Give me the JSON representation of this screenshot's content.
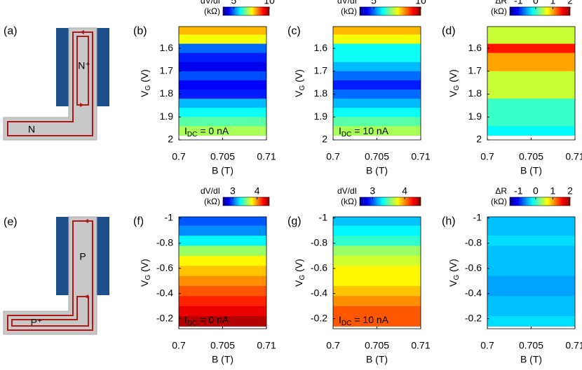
{
  "diagrams": [
    {
      "label": "(a)",
      "texts": [
        "N⁺",
        "N"
      ]
    },
    {
      "label": "(e)",
      "texts": [
        "P",
        "P⁺"
      ]
    }
  ],
  "chart_data": [
    {
      "type": "heatmap",
      "panel_label": "(b)",
      "colorbar": {
        "label": [
          "dV/dI",
          "(kΩ)"
        ],
        "clim": [
          3.5,
          10
        ],
        "ticks": [
          5,
          10
        ]
      },
      "x_label": "B (T)",
      "y_label": {
        "main": "V",
        "sub": "G",
        "rest": "(V)"
      },
      "annotation": {
        "main": "I",
        "sub": "DC",
        "rest": "= 0 nA"
      },
      "xlim": [
        0.7,
        0.71
      ],
      "xticks": [
        0.7,
        0.705,
        0.71
      ],
      "ylim": [
        1.505,
        2
      ],
      "yticks": [
        1.6,
        1.7,
        1.8,
        1.9,
        2
      ],
      "y": [
        1.52,
        1.56,
        1.6,
        1.64,
        1.68,
        1.72,
        1.76,
        1.8,
        1.84,
        1.88,
        1.92,
        1.96
      ],
      "values": [
        8,
        7.5,
        5,
        4.5,
        4.2,
        4.8,
        4.3,
        4.5,
        5.5,
        6,
        6.5,
        7
      ]
    },
    {
      "type": "heatmap",
      "panel_label": "(c)",
      "colorbar": {
        "label": [
          "dV/dI",
          "(kΩ)"
        ],
        "clim": [
          3.5,
          10
        ],
        "ticks": [
          5,
          10
        ]
      },
      "x_label": "B (T)",
      "y_label": {
        "main": "V",
        "sub": "G",
        "rest": "(V)"
      },
      "annotation": {
        "main": "I",
        "sub": "DC",
        "rest": "= 10 nA"
      },
      "xlim": [
        0.7,
        0.71
      ],
      "xticks": [
        0.7,
        0.705,
        0.71
      ],
      "ylim": [
        1.505,
        2
      ],
      "yticks": [
        1.6,
        1.7,
        1.8,
        1.9,
        2
      ],
      "y": [
        1.52,
        1.56,
        1.6,
        1.64,
        1.68,
        1.72,
        1.76,
        1.8,
        1.84,
        1.88,
        1.92,
        1.96
      ],
      "values": [
        8,
        7.5,
        6,
        6,
        5.5,
        5,
        4.5,
        5,
        5.5,
        6,
        6.5,
        7
      ]
    },
    {
      "type": "heatmap",
      "panel_label": "(d)",
      "colorbar": {
        "label": [
          "ΔR",
          "(kΩ)"
        ],
        "clim": [
          -1.5,
          2
        ],
        "ticks": [
          -1,
          0,
          1,
          2
        ]
      },
      "x_label": "B (T)",
      "y_label": {
        "main": "V",
        "sub": "G",
        "rest": "(V)"
      },
      "xlim": [
        0.7,
        0.71
      ],
      "xticks": [
        0.7,
        0.705,
        0.71
      ],
      "ylim": [
        1.505,
        2
      ],
      "yticks": [
        1.6,
        1.7,
        1.8,
        1.9,
        2
      ],
      "y": [
        1.52,
        1.56,
        1.6,
        1.64,
        1.68,
        1.72,
        1.76,
        1.8,
        1.84,
        1.88,
        1.92,
        1.96
      ],
      "values": [
        0.5,
        0.5,
        1.5,
        1,
        1,
        0.5,
        0.5,
        0.5,
        0,
        0,
        0,
        -0.2
      ]
    },
    {
      "type": "heatmap",
      "panel_label": "(f)",
      "colorbar": {
        "label": [
          "dV/dI",
          "(kΩ)"
        ],
        "clim": [
          2.6,
          4.5
        ],
        "ticks": [
          3,
          4
        ]
      },
      "x_label": "B (T)",
      "y_label": {
        "main": "V",
        "sub": "G",
        "rest": "(V)"
      },
      "annotation": {
        "main": "I",
        "sub": "DC",
        "rest": "= 0 nA"
      },
      "xlim": [
        0.7,
        0.71
      ],
      "xticks": [
        0.7,
        0.705,
        0.71
      ],
      "ylim": [
        -1.01,
        -0.12
      ],
      "yticks": [
        -1,
        -0.8,
        -0.6,
        -0.4,
        -0.2
      ],
      "y": [
        -0.98,
        -0.9,
        -0.82,
        -0.74,
        -0.66,
        -0.58,
        -0.5,
        -0.42,
        -0.34,
        -0.26,
        -0.18
      ],
      "values": [
        3,
        3.1,
        3.3,
        3.6,
        3.8,
        3.9,
        4,
        4.1,
        4.2,
        4.3,
        4.4
      ]
    },
    {
      "type": "heatmap",
      "panel_label": "(g)",
      "colorbar": {
        "label": [
          "dV/dI",
          "(kΩ)"
        ],
        "clim": [
          2.6,
          4.5
        ],
        "ticks": [
          3,
          4
        ]
      },
      "x_label": "B (T)",
      "y_label": {
        "main": "V",
        "sub": "G",
        "rest": "(V)"
      },
      "annotation": {
        "main": "I",
        "sub": "DC",
        "rest": "= 10 nA"
      },
      "xlim": [
        0.7,
        0.71
      ],
      "xticks": [
        0.7,
        0.705,
        0.71
      ],
      "ylim": [
        -1.01,
        -0.12
      ],
      "yticks": [
        -1,
        -0.8,
        -0.6,
        -0.4,
        -0.2
      ],
      "y": [
        -0.98,
        -0.9,
        -0.82,
        -0.74,
        -0.66,
        -0.58,
        -0.5,
        -0.42,
        -0.34,
        -0.26,
        -0.18
      ],
      "values": [
        3.2,
        3.3,
        3.4,
        3.6,
        3.7,
        3.8,
        3.8,
        3.9,
        4,
        4.1,
        4.1
      ]
    },
    {
      "type": "heatmap",
      "panel_label": "(h)",
      "colorbar": {
        "label": [
          "ΔR",
          "(kΩ)"
        ],
        "clim": [
          -1.5,
          2
        ],
        "ticks": [
          -1,
          0,
          1,
          2
        ]
      },
      "x_label": "B (T)",
      "y_label": {
        "main": "V",
        "sub": "G",
        "rest": "(V)"
      },
      "xlim": [
        0.7,
        0.71
      ],
      "xticks": [
        0.7,
        0.705,
        0.71
      ],
      "ylim": [
        -1.01,
        -0.12
      ],
      "yticks": [
        -1,
        -0.8,
        -0.6,
        -0.4,
        -0.2
      ],
      "y": [
        -0.98,
        -0.9,
        -0.82,
        -0.74,
        -0.66,
        -0.58,
        -0.5,
        -0.42,
        -0.34,
        -0.26,
        -0.18
      ],
      "values": [
        -0.4,
        -0.4,
        -0.3,
        -0.4,
        -0.4,
        -0.4,
        -0.5,
        -0.5,
        -0.4,
        -0.4,
        -0.3
      ]
    }
  ]
}
